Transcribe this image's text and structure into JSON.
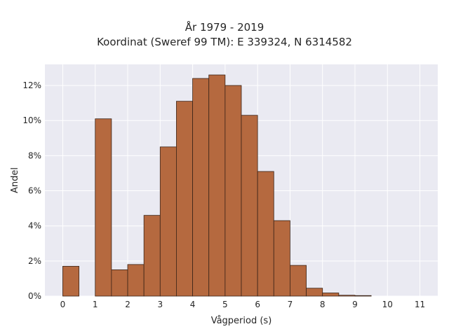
{
  "chart_data": {
    "type": "bar",
    "title": [
      "År 1979 - 2019",
      "Koordinat (Sweref 99 TM): E 339324, N 6314582"
    ],
    "xlabel": "Vågperiod (s)",
    "ylabel": "Andel",
    "bin_width": 0.5,
    "bins": [
      {
        "start": 0.0,
        "value": 1.7
      },
      {
        "start": 0.5,
        "value": 0.0
      },
      {
        "start": 1.0,
        "value": 10.1
      },
      {
        "start": 1.5,
        "value": 1.5
      },
      {
        "start": 2.0,
        "value": 1.8
      },
      {
        "start": 2.5,
        "value": 4.6
      },
      {
        "start": 3.0,
        "value": 8.5
      },
      {
        "start": 3.5,
        "value": 11.1
      },
      {
        "start": 4.0,
        "value": 12.4
      },
      {
        "start": 4.5,
        "value": 12.6
      },
      {
        "start": 5.0,
        "value": 12.0
      },
      {
        "start": 5.5,
        "value": 10.3
      },
      {
        "start": 6.0,
        "value": 7.1
      },
      {
        "start": 6.5,
        "value": 4.3
      },
      {
        "start": 7.0,
        "value": 1.75
      },
      {
        "start": 7.5,
        "value": 0.45
      },
      {
        "start": 8.0,
        "value": 0.18
      },
      {
        "start": 8.5,
        "value": 0.05
      },
      {
        "start": 9.0,
        "value": 0.03
      },
      {
        "start": 9.5,
        "value": 0.0
      },
      {
        "start": 10.0,
        "value": 0.0
      },
      {
        "start": 10.5,
        "value": 0.0
      }
    ],
    "xticks": [
      0,
      1,
      2,
      3,
      4,
      5,
      6,
      7,
      8,
      9,
      10,
      11
    ],
    "yticks": [
      0,
      2,
      4,
      6,
      8,
      10,
      12
    ],
    "ytick_labels": [
      "0%",
      "2%",
      "4%",
      "6%",
      "8%",
      "10%",
      "12%"
    ],
    "xlim": [
      -0.55,
      11.55
    ],
    "ylim": [
      0,
      13.2
    ],
    "grid": true,
    "colors": {
      "bar_fill": "#b5693f",
      "bar_edge": "#3b2418",
      "plot_background": "#eaeaf2",
      "grid": "#ffffff"
    }
  }
}
